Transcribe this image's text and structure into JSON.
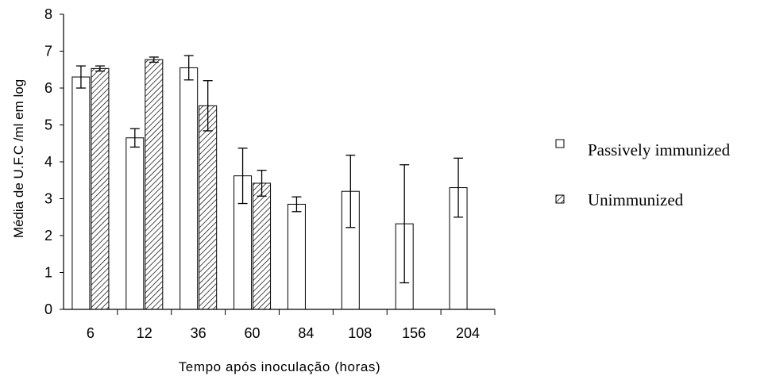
{
  "chart_data": {
    "type": "bar",
    "title": "",
    "xlabel": "Tempo após inoculação (horas)",
    "ylabel": "Média de U.F.C /ml em log",
    "categories": [
      "6",
      "12",
      "36",
      "60",
      "84",
      "108",
      "156",
      "204"
    ],
    "ylim": [
      0,
      8
    ],
    "yticks": [
      "0",
      "1",
      "2",
      "3",
      "4",
      "5",
      "6",
      "7",
      "8"
    ],
    "grid": false,
    "legend_position": "right",
    "series": [
      {
        "name": "Passively immunized",
        "fill": "none",
        "values": [
          6.3,
          4.65,
          6.55,
          3.62,
          2.85,
          3.2,
          2.32,
          3.3
        ],
        "error": [
          0.3,
          0.25,
          0.33,
          0.75,
          0.2,
          0.98,
          1.6,
          0.8
        ]
      },
      {
        "name": "Unimmunized",
        "fill": "hatched",
        "values": [
          6.53,
          6.77,
          5.52,
          3.42,
          null,
          null,
          null,
          null
        ],
        "error": [
          0.07,
          0.07,
          0.68,
          0.35,
          null,
          null,
          null,
          null
        ]
      }
    ]
  }
}
